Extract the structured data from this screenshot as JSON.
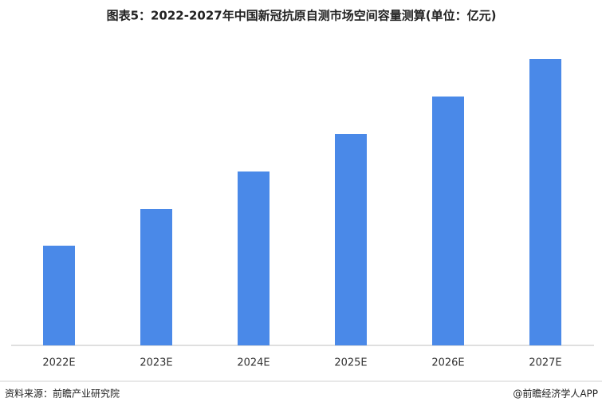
{
  "chart_data": {
    "type": "bar",
    "title": "图表5：2022-2027年中国新冠抗原自测市场空间容量测算(单位：亿元)",
    "categories": [
      "2022E",
      "2023E",
      "2024E",
      "2025E",
      "2026E",
      "2027E"
    ],
    "values": [
      125,
      171,
      218,
      265,
      312,
      359
    ],
    "color": "#4a89e8",
    "ylim": [
      0,
      400
    ],
    "source": "资料来源：前瞻产业研究院",
    "credit": "@前瞻经济学人APP"
  }
}
